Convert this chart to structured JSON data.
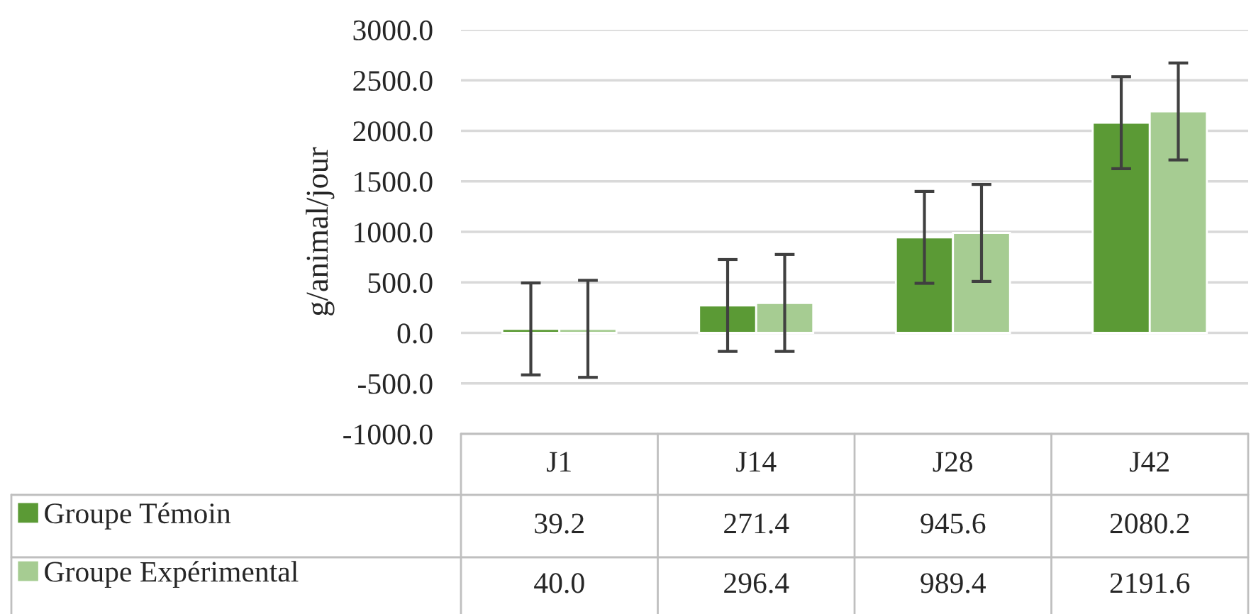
{
  "chart_data": {
    "type": "bar",
    "ylabel": "g/animal/jour",
    "categories": [
      "J1",
      "J14",
      "J28",
      "J42"
    ],
    "series": [
      {
        "name": "Groupe Témoin",
        "color": "#5b9a35",
        "values": [
          39.2,
          271.4,
          945.6,
          2080.2
        ],
        "errors": [
          455,
          455,
          455,
          455
        ],
        "value_labels": [
          "39.2",
          "271.4",
          "945.6",
          "2080.2"
        ]
      },
      {
        "name": "Groupe Expérimental",
        "color": "#a6cc92",
        "values": [
          40.0,
          296.4,
          989.4,
          2191.6
        ],
        "errors": [
          480,
          480,
          480,
          480
        ],
        "value_labels": [
          "40.0",
          "296.4",
          "989.4",
          "2191.6"
        ]
      }
    ],
    "ylim": [
      -1000,
      3000
    ],
    "yticks": [
      {
        "value": -1000,
        "label": "-1000.0"
      },
      {
        "value": -500,
        "label": "-500.0"
      },
      {
        "value": 0,
        "label": "0.0"
      },
      {
        "value": 500,
        "label": "500.0"
      },
      {
        "value": 1000,
        "label": "1000.0"
      },
      {
        "value": 1500,
        "label": "1500.0"
      },
      {
        "value": 2000,
        "label": "2000.0"
      },
      {
        "value": 2500,
        "label": "2500.0"
      },
      {
        "value": 3000,
        "label": "3000.0"
      }
    ],
    "grid": "y",
    "legend": "bottom"
  }
}
